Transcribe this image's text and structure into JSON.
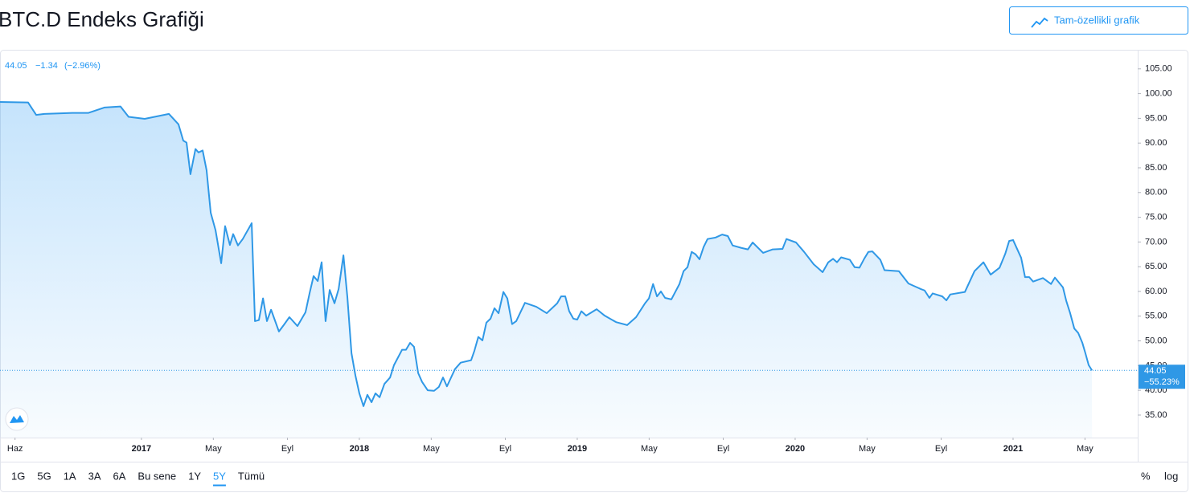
{
  "header": {
    "title": "BTC.D Endeks Grafiği",
    "button": "Tam-özellikli grafik"
  },
  "chart_data": {
    "type": "area",
    "legend": {
      "price": "44.05",
      "change": "−1.34",
      "change_pct": "(−2.96%)"
    },
    "price_label": {
      "value": 44.05,
      "label": "44.05",
      "change": "−55.23%"
    },
    "color": "#2f98e6",
    "x": [
      2016.351,
      2016.48,
      2016.517,
      2016.554,
      2016.683,
      2016.757,
      2016.831,
      2016.904,
      2016.941,
      2017.015,
      2017.126,
      2017.17,
      2017.192,
      2017.207,
      2017.225,
      2017.248,
      2017.262,
      2017.281,
      2017.299,
      2017.318,
      2017.34,
      2017.366,
      2017.384,
      2017.406,
      2017.421,
      2017.443,
      2017.465,
      2017.506,
      2017.521,
      2017.539,
      2017.558,
      2017.576,
      2017.595,
      2017.631,
      2017.653,
      2017.679,
      2017.716,
      2017.753,
      2017.772,
      2017.79,
      2017.809,
      2017.827,
      2017.845,
      2017.864,
      2017.886,
      2017.905,
      2017.927,
      2017.945,
      2017.964,
      2017.982,
      2018.0,
      2018.019,
      2018.037,
      2018.056,
      2018.074,
      2018.093,
      2018.115,
      2018.141,
      2018.159,
      2018.196,
      2018.214,
      2018.233,
      2018.251,
      2018.27,
      2018.288,
      2018.314,
      2018.343,
      2018.365,
      2018.384,
      2018.402,
      2018.439,
      2018.465,
      2018.513,
      2018.528,
      2018.546,
      2018.565,
      2018.583,
      2018.602,
      2018.62,
      2018.639,
      2018.661,
      2018.679,
      2018.701,
      2018.72,
      2018.76,
      2018.812,
      2018.86,
      2018.908,
      2018.926,
      2018.945,
      2018.963,
      2018.982,
      2019.0,
      2019.019,
      2019.041,
      2019.089,
      2019.126,
      2019.178,
      2019.229,
      2019.27,
      2019.311,
      2019.329,
      2019.348,
      2019.366,
      2019.384,
      2019.403,
      2019.432,
      2019.469,
      2019.488,
      2019.506,
      2019.525,
      2019.543,
      2019.561,
      2019.58,
      2019.598,
      2019.635,
      2019.665,
      2019.691,
      2019.713,
      2019.753,
      2019.783,
      2019.805,
      2019.853,
      2019.897,
      2019.942,
      2019.96,
      2020.004,
      2020.041,
      2020.085,
      2020.126,
      2020.152,
      2020.174,
      2020.192,
      2020.211,
      2020.251,
      2020.273,
      2020.295,
      2020.318,
      2020.336,
      2020.354,
      2020.391,
      2020.41,
      2020.476,
      2020.52,
      2020.576,
      2020.594,
      2020.616,
      2020.631,
      2020.675,
      2020.694,
      2020.712,
      2020.779,
      2020.823,
      2020.864,
      2020.897,
      2020.938,
      2020.964,
      2020.982,
      2021.0,
      2021.037,
      2021.055,
      2021.074,
      2021.092,
      2021.137,
      2021.174,
      2021.192,
      2021.229,
      2021.244,
      2021.262,
      2021.281,
      2021.299,
      2021.318,
      2021.332,
      2021.347,
      2021.362
    ],
    "values": [
      98.3,
      98.2,
      95.7,
      95.9,
      96.1,
      96.1,
      97.2,
      97.4,
      95.3,
      94.9,
      95.9,
      93.8,
      90.5,
      90.1,
      83.7,
      88.8,
      88.1,
      88.5,
      84.5,
      75.9,
      72.4,
      65.7,
      73.2,
      69.4,
      71.6,
      69.3,
      70.6,
      73.8,
      54.0,
      54.2,
      58.6,
      54.0,
      56.3,
      51.9,
      53.2,
      54.8,
      53.0,
      55.8,
      59.7,
      63.1,
      62.1,
      65.9,
      54.0,
      60.3,
      57.6,
      60.5,
      67.3,
      58.9,
      47.5,
      43.0,
      39.4,
      36.8,
      39.1,
      37.6,
      39.4,
      38.6,
      41.3,
      42.6,
      45.1,
      48.2,
      48.2,
      49.6,
      48.8,
      43.5,
      41.7,
      40.0,
      39.9,
      40.7,
      42.6,
      40.8,
      44.3,
      45.6,
      46.1,
      48.0,
      50.8,
      50.1,
      53.7,
      54.5,
      56.6,
      55.6,
      59.9,
      58.6,
      53.4,
      54.0,
      57.7,
      56.9,
      55.6,
      57.6,
      59.0,
      59.0,
      56.0,
      54.5,
      54.3,
      56.0,
      55.1,
      56.4,
      55.1,
      53.8,
      53.2,
      54.8,
      57.6,
      58.6,
      61.5,
      59.0,
      60.0,
      58.7,
      58.4,
      61.5,
      64.1,
      64.9,
      68.0,
      67.5,
      66.5,
      69.0,
      70.6,
      70.9,
      71.5,
      71.2,
      69.3,
      68.8,
      68.5,
      69.9,
      67.8,
      68.5,
      68.6,
      70.6,
      69.9,
      68.0,
      65.5,
      63.9,
      65.9,
      66.6,
      65.9,
      66.9,
      66.4,
      64.9,
      64.8,
      66.7,
      68.0,
      68.1,
      66.4,
      64.3,
      64.1,
      61.6,
      60.5,
      60.2,
      58.7,
      59.6,
      59.0,
      58.2,
      59.4,
      59.9,
      64.1,
      65.9,
      63.4,
      64.8,
      67.6,
      70.2,
      70.4,
      66.8,
      62.9,
      62.9,
      62.0,
      62.7,
      61.5,
      62.8,
      60.8,
      58.1,
      55.6,
      52.5,
      51.6,
      49.6,
      47.5,
      45.1,
      44.05
    ],
    "xlim": [
      2016.351,
      2021.572
    ],
    "xticks": [
      {
        "value": 2016.42,
        "label": "Haz"
      },
      2017,
      {
        "value": 2017.33,
        "label": "May"
      },
      {
        "value": 2017.67,
        "label": "Eyl"
      },
      2018,
      {
        "value": 2018.33,
        "label": "May"
      },
      {
        "value": 2018.67,
        "label": "Eyl"
      },
      2019,
      {
        "value": 2019.33,
        "label": "May"
      },
      {
        "value": 2019.67,
        "label": "Eyl"
      },
      2020,
      {
        "value": 2020.33,
        "label": "May"
      },
      {
        "value": 2020.67,
        "label": "Eyl"
      },
      2021,
      {
        "value": 2021.33,
        "label": "May"
      }
    ],
    "ylim": [
      30.45,
      108.7
    ],
    "yticks": [
      {
        "value": 35,
        "label": "35.00"
      },
      {
        "value": 40,
        "label": "40.00"
      },
      {
        "value": 45,
        "label": "45.00"
      },
      {
        "value": 50,
        "label": "50.00"
      },
      {
        "value": 55,
        "label": "55.00"
      },
      {
        "value": 60,
        "label": "60.00"
      },
      {
        "value": 65,
        "label": "65.00"
      },
      {
        "value": 70,
        "label": "70.00"
      },
      {
        "value": 75,
        "label": "75.00"
      },
      {
        "value": 80,
        "label": "80.00"
      },
      {
        "value": 85,
        "label": "85.00"
      },
      {
        "value": 90,
        "label": "90.00"
      },
      {
        "value": 95,
        "label": "95.00"
      },
      {
        "value": 100,
        "label": "100.00"
      },
      {
        "value": 105,
        "label": "105.00"
      }
    ]
  },
  "toolbar": {
    "ranges": [
      "1G",
      "5G",
      "1A",
      "3A",
      "6A",
      "Bu sene",
      "1Y",
      "5Y",
      "Tümü"
    ],
    "selected": 7,
    "right": [
      "%",
      "log"
    ]
  }
}
